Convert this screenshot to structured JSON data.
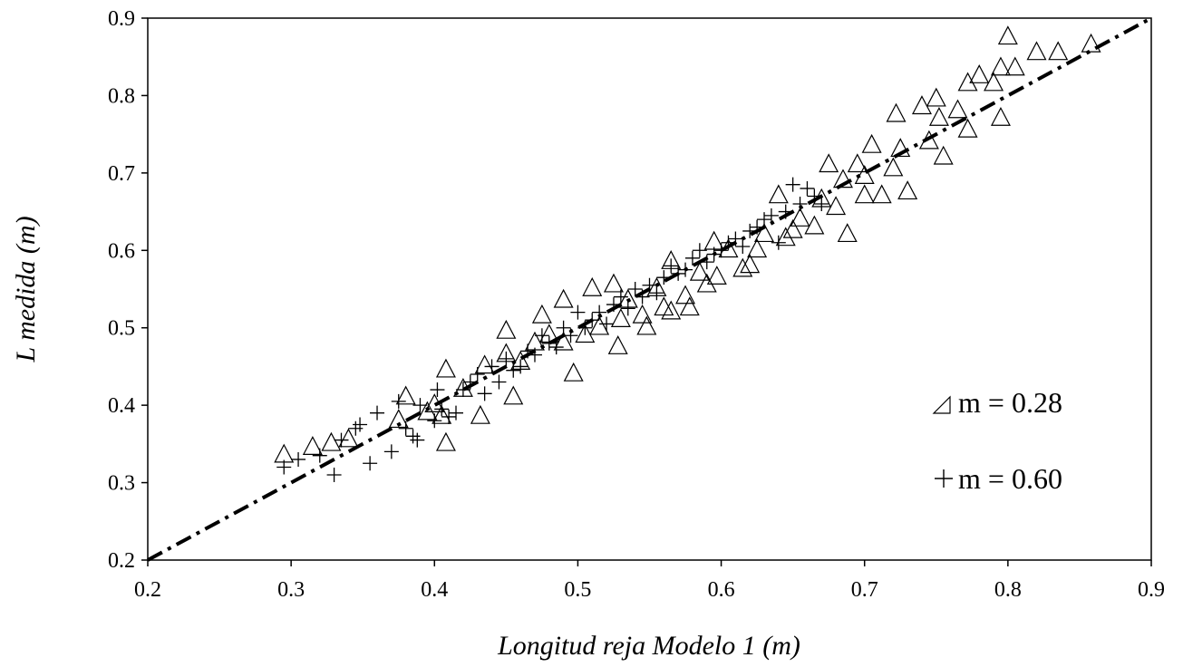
{
  "chart_data": {
    "type": "scatter",
    "xlabel": "Longitud reja Modelo 1 (m)",
    "ylabel": "L medida (m)",
    "xlim": [
      0.2,
      0.9
    ],
    "ylim": [
      0.2,
      0.9
    ],
    "x_ticks": [
      "0.2",
      "0.3",
      "0.4",
      "0.5",
      "0.6",
      "0.7",
      "0.8",
      "0.9"
    ],
    "y_ticks": [
      "0.2",
      "0.3",
      "0.4",
      "0.5",
      "0.6",
      "0.7",
      "0.8",
      "0.9"
    ],
    "grid": false,
    "legend_position": "right",
    "reference_line": {
      "style": "dash-dot",
      "color": "#000000",
      "points": [
        [
          0.2,
          0.2
        ],
        [
          0.9,
          0.9
        ]
      ]
    },
    "series": [
      {
        "name": "m = 0.28",
        "marker": "triangle",
        "color": "#000000",
        "points": [
          [
            0.295,
            0.335
          ],
          [
            0.315,
            0.345
          ],
          [
            0.328,
            0.35
          ],
          [
            0.34,
            0.355
          ],
          [
            0.375,
            0.38
          ],
          [
            0.38,
            0.41
          ],
          [
            0.395,
            0.39
          ],
          [
            0.4,
            0.4
          ],
          [
            0.405,
            0.385
          ],
          [
            0.408,
            0.445
          ],
          [
            0.408,
            0.35
          ],
          [
            0.42,
            0.42
          ],
          [
            0.432,
            0.385
          ],
          [
            0.435,
            0.45
          ],
          [
            0.45,
            0.465
          ],
          [
            0.45,
            0.495
          ],
          [
            0.455,
            0.41
          ],
          [
            0.46,
            0.455
          ],
          [
            0.47,
            0.48
          ],
          [
            0.475,
            0.515
          ],
          [
            0.48,
            0.49
          ],
          [
            0.49,
            0.535
          ],
          [
            0.49,
            0.48
          ],
          [
            0.497,
            0.44
          ],
          [
            0.505,
            0.49
          ],
          [
            0.51,
            0.55
          ],
          [
            0.515,
            0.5
          ],
          [
            0.525,
            0.555
          ],
          [
            0.528,
            0.475
          ],
          [
            0.53,
            0.51
          ],
          [
            0.535,
            0.535
          ],
          [
            0.545,
            0.515
          ],
          [
            0.548,
            0.5
          ],
          [
            0.555,
            0.55
          ],
          [
            0.56,
            0.525
          ],
          [
            0.565,
            0.52
          ],
          [
            0.565,
            0.585
          ],
          [
            0.575,
            0.54
          ],
          [
            0.578,
            0.525
          ],
          [
            0.585,
            0.57
          ],
          [
            0.59,
            0.555
          ],
          [
            0.595,
            0.61
          ],
          [
            0.597,
            0.565
          ],
          [
            0.605,
            0.6
          ],
          [
            0.615,
            0.575
          ],
          [
            0.62,
            0.58
          ],
          [
            0.625,
            0.6
          ],
          [
            0.63,
            0.62
          ],
          [
            0.64,
            0.67
          ],
          [
            0.645,
            0.615
          ],
          [
            0.65,
            0.625
          ],
          [
            0.655,
            0.64
          ],
          [
            0.665,
            0.63
          ],
          [
            0.67,
            0.665
          ],
          [
            0.675,
            0.71
          ],
          [
            0.68,
            0.655
          ],
          [
            0.685,
            0.69
          ],
          [
            0.688,
            0.62
          ],
          [
            0.695,
            0.71
          ],
          [
            0.7,
            0.695
          ],
          [
            0.7,
            0.67
          ],
          [
            0.705,
            0.735
          ],
          [
            0.712,
            0.67
          ],
          [
            0.72,
            0.705
          ],
          [
            0.722,
            0.775
          ],
          [
            0.725,
            0.73
          ],
          [
            0.73,
            0.675
          ],
          [
            0.74,
            0.785
          ],
          [
            0.745,
            0.74
          ],
          [
            0.75,
            0.795
          ],
          [
            0.752,
            0.77
          ],
          [
            0.755,
            0.72
          ],
          [
            0.765,
            0.78
          ],
          [
            0.772,
            0.815
          ],
          [
            0.772,
            0.755
          ],
          [
            0.78,
            0.825
          ],
          [
            0.79,
            0.815
          ],
          [
            0.795,
            0.835
          ],
          [
            0.795,
            0.77
          ],
          [
            0.8,
            0.875
          ],
          [
            0.805,
            0.835
          ],
          [
            0.82,
            0.855
          ],
          [
            0.835,
            0.855
          ],
          [
            0.858,
            0.865
          ]
        ]
      },
      {
        "name": "m = 0.60",
        "marker": "plus",
        "color": "#000000",
        "points": [
          [
            0.295,
            0.32
          ],
          [
            0.305,
            0.33
          ],
          [
            0.32,
            0.335
          ],
          [
            0.33,
            0.31
          ],
          [
            0.335,
            0.355
          ],
          [
            0.345,
            0.37
          ],
          [
            0.348,
            0.375
          ],
          [
            0.355,
            0.325
          ],
          [
            0.36,
            0.39
          ],
          [
            0.37,
            0.34
          ],
          [
            0.375,
            0.405
          ],
          [
            0.38,
            0.37
          ],
          [
            0.385,
            0.36
          ],
          [
            0.388,
            0.355
          ],
          [
            0.39,
            0.4
          ],
          [
            0.4,
            0.38
          ],
          [
            0.402,
            0.42
          ],
          [
            0.405,
            0.395
          ],
          [
            0.41,
            0.385
          ],
          [
            0.415,
            0.39
          ],
          [
            0.42,
            0.42
          ],
          [
            0.425,
            0.43
          ],
          [
            0.43,
            0.44
          ],
          [
            0.435,
            0.415
          ],
          [
            0.44,
            0.45
          ],
          [
            0.445,
            0.43
          ],
          [
            0.45,
            0.46
          ],
          [
            0.455,
            0.445
          ],
          [
            0.46,
            0.45
          ],
          [
            0.465,
            0.47
          ],
          [
            0.47,
            0.465
          ],
          [
            0.475,
            0.49
          ],
          [
            0.48,
            0.48
          ],
          [
            0.485,
            0.475
          ],
          [
            0.49,
            0.5
          ],
          [
            0.495,
            0.49
          ],
          [
            0.5,
            0.52
          ],
          [
            0.505,
            0.5
          ],
          [
            0.51,
            0.51
          ],
          [
            0.515,
            0.52
          ],
          [
            0.52,
            0.505
          ],
          [
            0.525,
            0.53
          ],
          [
            0.53,
            0.54
          ],
          [
            0.535,
            0.525
          ],
          [
            0.54,
            0.55
          ],
          [
            0.545,
            0.54
          ],
          [
            0.55,
            0.555
          ],
          [
            0.555,
            0.545
          ],
          [
            0.56,
            0.565
          ],
          [
            0.565,
            0.58
          ],
          [
            0.57,
            0.57
          ],
          [
            0.575,
            0.575
          ],
          [
            0.58,
            0.59
          ],
          [
            0.585,
            0.6
          ],
          [
            0.59,
            0.585
          ],
          [
            0.595,
            0.595
          ],
          [
            0.6,
            0.6
          ],
          [
            0.605,
            0.61
          ],
          [
            0.61,
            0.615
          ],
          [
            0.615,
            0.605
          ],
          [
            0.62,
            0.625
          ],
          [
            0.625,
            0.63
          ],
          [
            0.63,
            0.64
          ],
          [
            0.635,
            0.645
          ],
          [
            0.64,
            0.61
          ],
          [
            0.645,
            0.65
          ],
          [
            0.65,
            0.685
          ],
          [
            0.655,
            0.66
          ],
          [
            0.66,
            0.68
          ],
          [
            0.665,
            0.67
          ],
          [
            0.67,
            0.66
          ]
        ]
      }
    ],
    "legend": [
      {
        "symbol": "triangle",
        "label": "m = 0.28"
      },
      {
        "symbol": "plus",
        "label": "m = 0.60"
      }
    ]
  }
}
